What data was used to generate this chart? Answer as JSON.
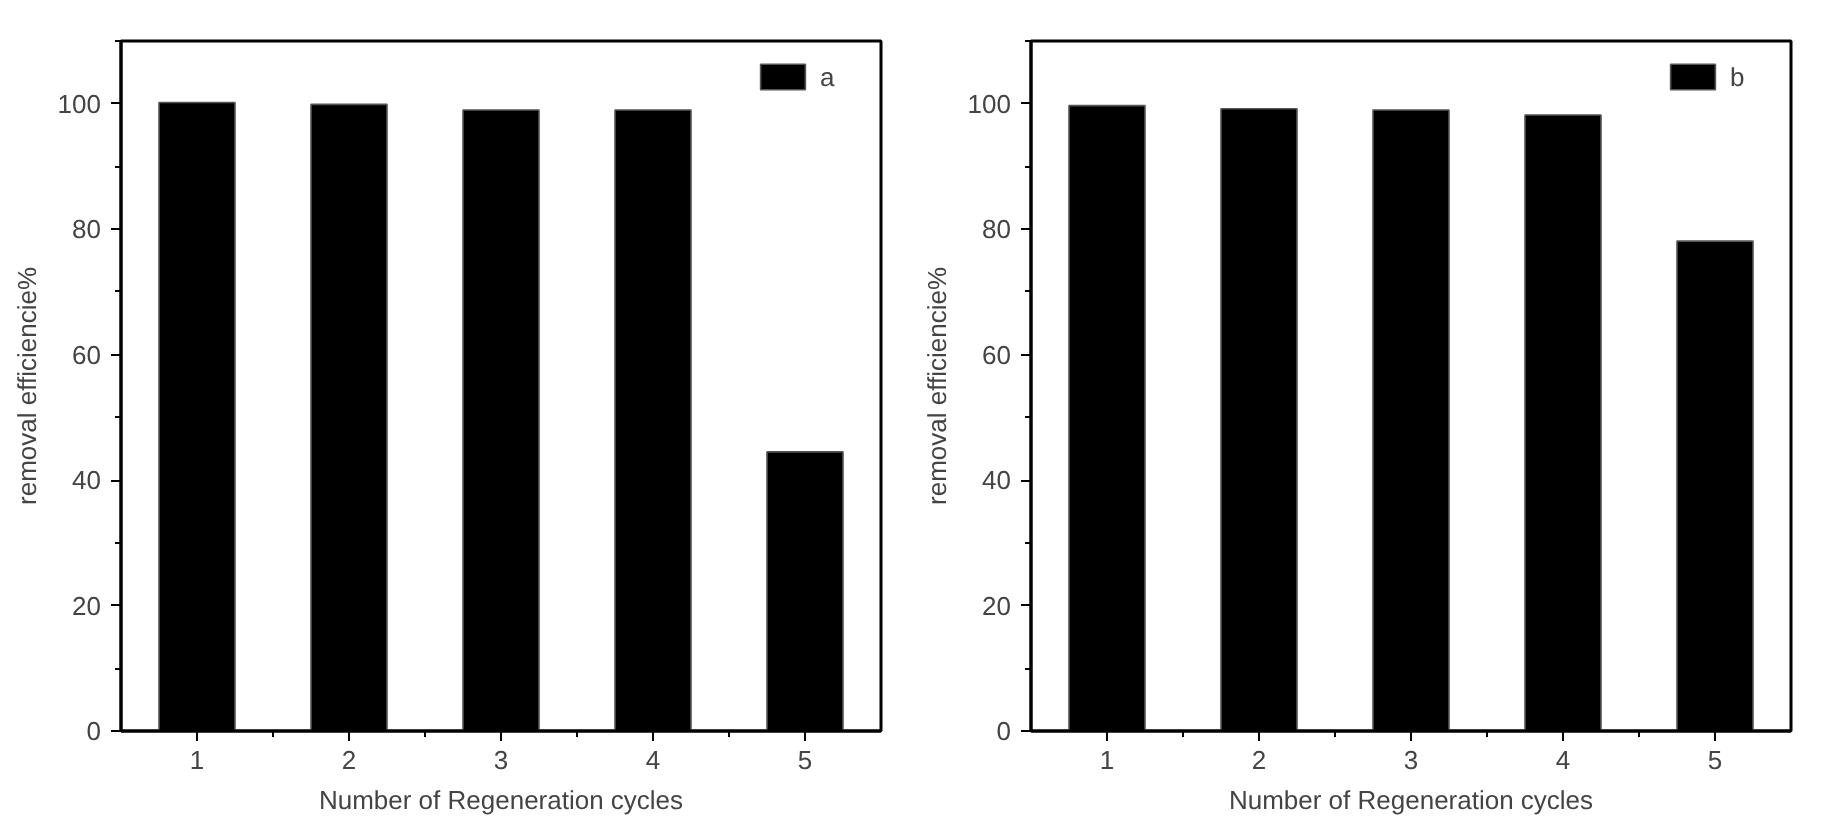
{
  "chart_data": [
    {
      "type": "bar",
      "categories": [
        "1",
        "2",
        "3",
        "4",
        "5"
      ],
      "xlabel": "Number of Regeneration cycles",
      "ylabel": "removal efficiencie%",
      "ylim": [
        0,
        110
      ],
      "yticks": [
        0,
        20,
        40,
        60,
        80,
        100
      ],
      "legend": "top right",
      "series": [
        {
          "name": "a",
          "color": "#000000",
          "values": [
            100.2,
            99.9,
            99.0,
            99.0,
            44.5
          ]
        }
      ]
    },
    {
      "type": "bar",
      "categories": [
        "1",
        "2",
        "3",
        "4",
        "5"
      ],
      "xlabel": "Number of Regeneration cycles",
      "ylabel": "removal efficiencie%",
      "ylim": [
        0,
        110
      ],
      "yticks": [
        0,
        20,
        40,
        60,
        80,
        100
      ],
      "legend": "top right",
      "series": [
        {
          "name": "b",
          "color": "#000000",
          "values": [
            99.7,
            99.2,
            99.0,
            98.2,
            78.1
          ]
        }
      ]
    }
  ]
}
